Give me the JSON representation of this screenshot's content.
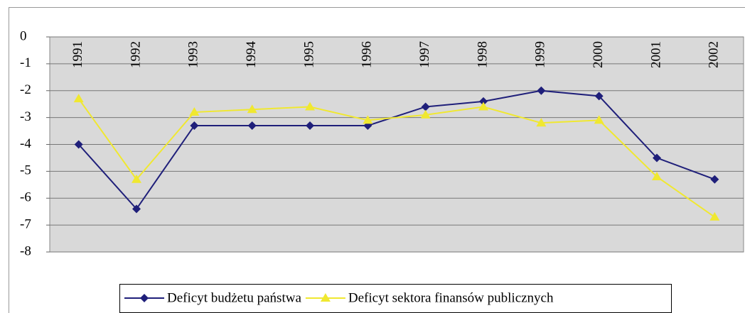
{
  "chart_data": {
    "type": "line",
    "categories": [
      "1991",
      "1992",
      "1993",
      "1994",
      "1995",
      "1996",
      "1997",
      "1998",
      "1999",
      "2000",
      "2001",
      "2002"
    ],
    "series": [
      {
        "name": "Deficyt budżetu państwa",
        "color": "#1f1f7a",
        "marker": "diamond",
        "values": [
          -4.0,
          -6.4,
          -3.3,
          -3.3,
          -3.3,
          -3.3,
          -2.6,
          -2.4,
          -2.0,
          -2.2,
          -4.5,
          -5.3
        ]
      },
      {
        "name": "Deficyt sektora finansów publicznych",
        "color": "#f0e830",
        "marker": "triangle",
        "values": [
          -2.3,
          -5.3,
          -2.8,
          -2.7,
          -2.6,
          -3.1,
          -2.9,
          -2.6,
          -3.2,
          -3.1,
          -5.2,
          -6.7
        ]
      }
    ],
    "ylim": [
      -8,
      0
    ],
    "yticks": [
      0,
      -1,
      -2,
      -3,
      -4,
      -5,
      -6,
      -7,
      -8
    ],
    "grid": true,
    "legend": "bottom"
  }
}
